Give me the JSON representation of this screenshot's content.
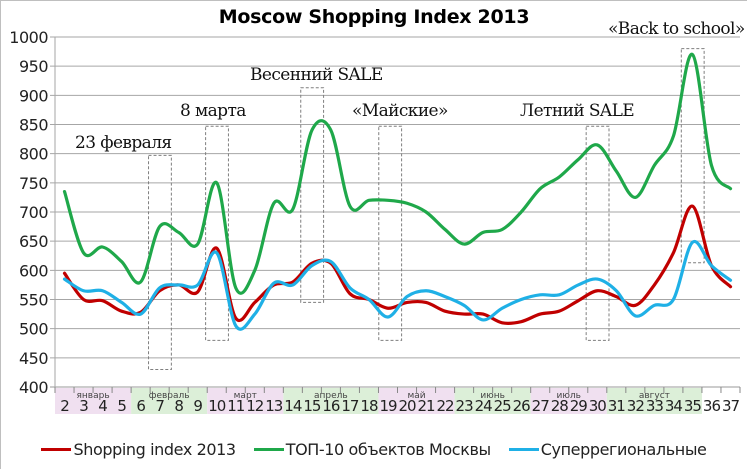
{
  "chart_data": {
    "type": "line",
    "title": "Moscow Shopping Index 2013",
    "xlabel": "",
    "ylabel": "",
    "ylim": [
      400,
      1000
    ],
    "yticks": [
      400,
      450,
      500,
      550,
      600,
      650,
      700,
      750,
      800,
      850,
      900,
      950,
      1000
    ],
    "grid": true,
    "legend_position": "bottom",
    "x": [
      2,
      3,
      4,
      5,
      6,
      7,
      8,
      9,
      10,
      11,
      12,
      13,
      14,
      15,
      16,
      17,
      18,
      19,
      20,
      21,
      22,
      23,
      24,
      25,
      26,
      27,
      28,
      29,
      30,
      31,
      32,
      33,
      34,
      35,
      36,
      37
    ],
    "month_bands": [
      {
        "label": "январь",
        "from": 2,
        "to": 5,
        "color": "#f0e0f0"
      },
      {
        "label": "февраль",
        "from": 6,
        "to": 9,
        "color": "#dcefd8"
      },
      {
        "label": "март",
        "from": 10,
        "to": 13,
        "color": "#f0e0f0"
      },
      {
        "label": "апрель",
        "from": 14,
        "to": 18,
        "color": "#dcefd8"
      },
      {
        "label": "май",
        "from": 19,
        "to": 22,
        "color": "#f0e0f0"
      },
      {
        "label": "июнь",
        "from": 23,
        "to": 26,
        "color": "#dcefd8"
      },
      {
        "label": "июль",
        "from": 27,
        "to": 30,
        "color": "#f0e0f0"
      },
      {
        "label": "август",
        "from": 31,
        "to": 35,
        "color": "#dcefd8"
      }
    ],
    "series": [
      {
        "name": "Shopping index 2013",
        "color": "#c00000",
        "values": [
          595,
          550,
          548,
          530,
          528,
          565,
          575,
          563,
          638,
          518,
          545,
          575,
          580,
          612,
          612,
          560,
          550,
          535,
          545,
          545,
          530,
          525,
          525,
          510,
          512,
          525,
          530,
          548,
          565,
          555,
          540,
          575,
          630,
          710,
          608,
          572
        ]
      },
      {
        "name": "ТОП-10 объектов Москвы",
        "color": "#1fa84a",
        "values": [
          735,
          630,
          640,
          615,
          580,
          675,
          665,
          645,
          750,
          570,
          600,
          715,
          705,
          840,
          840,
          710,
          720,
          720,
          715,
          700,
          670,
          645,
          665,
          670,
          700,
          740,
          760,
          790,
          815,
          770,
          725,
          780,
          830,
          970,
          780,
          740
        ]
      },
      {
        "name": "Суперрегиональные",
        "color": "#1fb0e6",
        "values": [
          585,
          565,
          565,
          545,
          525,
          570,
          575,
          575,
          630,
          505,
          525,
          578,
          575,
          608,
          615,
          570,
          550,
          520,
          555,
          565,
          555,
          540,
          515,
          535,
          550,
          558,
          558,
          575,
          585,
          565,
          522,
          540,
          550,
          648,
          608,
          583
        ]
      }
    ],
    "annotations": [
      {
        "text": "23 февраля",
        "week_from": 6.6,
        "week_to": 7.8,
        "y_top": 797,
        "y_bottom": 430
      },
      {
        "text": "8 марта",
        "week_from": 9.6,
        "week_to": 10.8,
        "y_top": 847,
        "y_bottom": 480
      },
      {
        "text": "Весенний SALE",
        "week_from": 14.6,
        "week_to": 15.8,
        "y_top": 913,
        "y_bottom": 545
      },
      {
        "text": "«Майские»",
        "week_from": 18.7,
        "week_to": 19.9,
        "y_top": 847,
        "y_bottom": 480
      },
      {
        "text": "Летний SALE",
        "week_from": 29.6,
        "week_to": 30.8,
        "y_top": 847,
        "y_bottom": 480
      },
      {
        "text": "«Back to school»",
        "week_from": 34.6,
        "week_to": 35.8,
        "y_top": 980,
        "y_bottom": 613
      }
    ]
  },
  "title": "Moscow Shopping Index 2013",
  "legend": [
    {
      "label": "Shopping index 2013",
      "color": "#c00000"
    },
    {
      "label": "ТОП-10 объектов Москвы",
      "color": "#1fa84a"
    },
    {
      "label": "Суперрегиональные",
      "color": "#1fb0e6"
    }
  ]
}
